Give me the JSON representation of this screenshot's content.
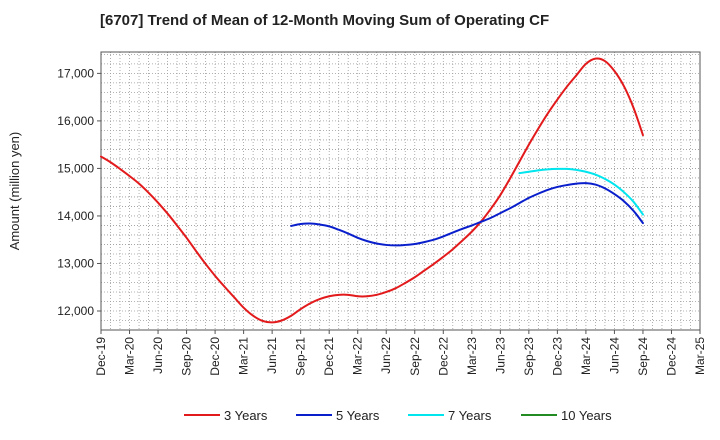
{
  "chart_data": {
    "type": "line",
    "title": "[6707]  Trend of Mean of 12-Month Moving Sum of Operating CF",
    "xlabel": "",
    "ylabel": "Amount (million yen)",
    "ylim": [
      11600,
      17450
    ],
    "yticks": [
      12000,
      13000,
      14000,
      15000,
      16000,
      17000
    ],
    "ytick_labels": [
      "12,000",
      "13,000",
      "14,000",
      "15,000",
      "16,000",
      "17,000"
    ],
    "xtick_labels": [
      "Dec-19",
      "Mar-20",
      "Jun-20",
      "Sep-20",
      "Dec-20",
      "Mar-21",
      "Jun-21",
      "Sep-21",
      "Dec-21",
      "Mar-22",
      "Jun-22",
      "Sep-22",
      "Dec-22",
      "Mar-23",
      "Jun-23",
      "Sep-23",
      "Dec-23",
      "Mar-24",
      "Jun-24",
      "Sep-24",
      "Dec-24",
      "Mar-25"
    ],
    "x_range_months": [
      0,
      63
    ],
    "grid": true,
    "legend_position": "bottom",
    "series": [
      {
        "name": "3 Years",
        "color": "#e31a1c",
        "x": [
          0,
          1,
          2,
          3,
          4,
          5,
          6,
          7,
          8,
          9,
          10,
          11,
          12,
          13,
          14,
          15,
          16,
          17,
          18,
          19,
          20,
          21,
          22,
          23,
          24,
          25,
          26,
          27,
          28,
          29,
          30,
          31,
          32,
          33,
          34,
          35,
          36,
          37,
          38,
          39,
          40,
          41,
          42,
          43,
          44,
          45,
          46,
          47,
          48,
          49,
          50,
          51,
          52,
          53,
          54,
          55,
          56,
          57
        ],
        "values": [
          15250,
          15130,
          14990,
          14840,
          14680,
          14490,
          14280,
          14050,
          13800,
          13540,
          13260,
          12990,
          12740,
          12510,
          12290,
          12070,
          11900,
          11790,
          11760,
          11800,
          11900,
          12040,
          12160,
          12250,
          12310,
          12340,
          12340,
          12310,
          12310,
          12340,
          12400,
          12480,
          12590,
          12710,
          12850,
          12990,
          13140,
          13300,
          13480,
          13670,
          13890,
          14150,
          14440,
          14780,
          15140,
          15500,
          15840,
          16160,
          16450,
          16720,
          16960,
          17200,
          17310,
          17260,
          17050,
          16730,
          16280,
          15700
        ]
      },
      {
        "name": "5 Years",
        "color": "#0a1fcc",
        "x": [
          20,
          21,
          22,
          23,
          24,
          25,
          26,
          27,
          28,
          29,
          30,
          31,
          32,
          33,
          34,
          35,
          36,
          37,
          38,
          39,
          40,
          41,
          42,
          43,
          44,
          45,
          46,
          47,
          48,
          49,
          50,
          51,
          52,
          53,
          54,
          55,
          56,
          57
        ],
        "values": [
          13790,
          13830,
          13840,
          13820,
          13780,
          13710,
          13630,
          13540,
          13470,
          13420,
          13390,
          13380,
          13390,
          13410,
          13450,
          13500,
          13570,
          13650,
          13730,
          13800,
          13880,
          13960,
          14060,
          14160,
          14270,
          14380,
          14470,
          14550,
          14610,
          14650,
          14680,
          14690,
          14660,
          14580,
          14460,
          14310,
          14110,
          13850
        ]
      },
      {
        "name": "7 Years",
        "color": "#00e5ee",
        "x": [
          44,
          45,
          46,
          47,
          48,
          49,
          50,
          51,
          52,
          53,
          54,
          55,
          56,
          57
        ],
        "values": [
          14900,
          14930,
          14960,
          14980,
          14990,
          14990,
          14970,
          14930,
          14870,
          14780,
          14660,
          14500,
          14300,
          14030
        ]
      },
      {
        "name": "10 Years",
        "color": "#228b22",
        "x": [],
        "values": []
      }
    ]
  }
}
